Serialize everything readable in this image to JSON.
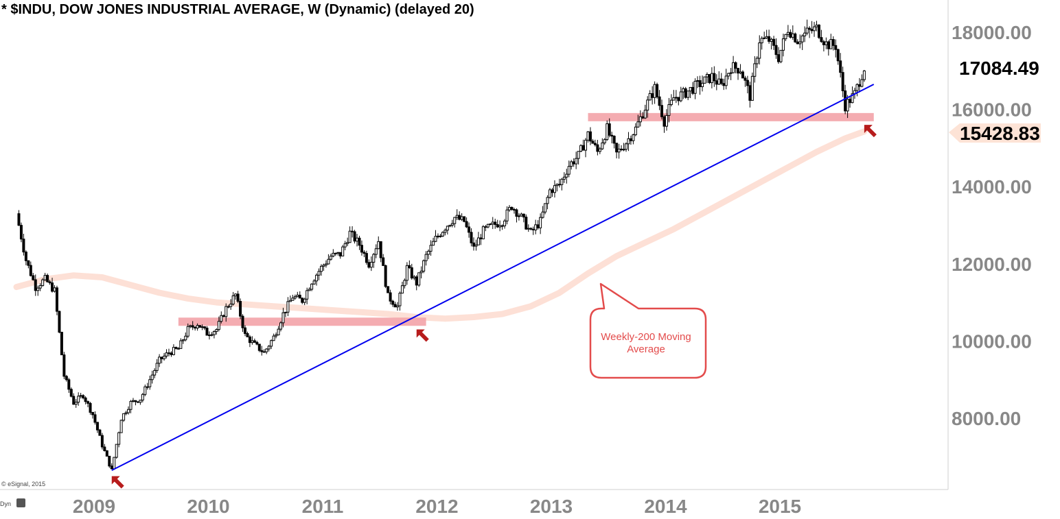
{
  "header": {
    "title": "* $INDU, DOW JONES INDUSTRIAL AVERAGE, W (Dynamic) (delayed 20)"
  },
  "footer": {
    "copyright": "© eSignal, 2015",
    "dyn_label": "Dyn"
  },
  "colors": {
    "candle": "#000000",
    "trendline": "#0000ee",
    "moving_average": "#fde0d6",
    "zones": "#f3a3a9",
    "arrows": "#b71c1c",
    "annotation": "#e34b4b"
  },
  "chart_data": {
    "type": "candlestick",
    "title": "* $INDU, DOW JONES INDUSTRIAL AVERAGE, W (Dynamic) (delayed 20)",
    "x_tick_labels": [
      "2009",
      "2010",
      "2011",
      "2012",
      "2013",
      "2014",
      "2015"
    ],
    "y_tick_labels": [
      "8000.00",
      "10000.00",
      "12000.00",
      "14000.00",
      "16000.00",
      "18000.00"
    ],
    "ylim": [
      6300,
      18800
    ],
    "y_scale": "linear",
    "grid": false,
    "last_price_label": "17084.49",
    "ma_value_label": "15428.83",
    "price_series": {
      "name": "$INDU weekly",
      "points": [
        [
          "2008-05",
          13300
        ],
        [
          "2008-06",
          12100
        ],
        [
          "2008-07",
          11400
        ],
        [
          "2008-08",
          11600
        ],
        [
          "2008-09",
          11300
        ],
        [
          "2008-10",
          9100
        ],
        [
          "2008-11",
          8400
        ],
        [
          "2008-12",
          8600
        ],
        [
          "2009-01",
          8100
        ],
        [
          "2009-02",
          7300
        ],
        [
          "2009-03",
          6650
        ],
        [
          "2009-04",
          8000
        ],
        [
          "2009-05",
          8400
        ],
        [
          "2009-06",
          8500
        ],
        [
          "2009-07",
          9000
        ],
        [
          "2009-08",
          9500
        ],
        [
          "2009-09",
          9700
        ],
        [
          "2009-10",
          9800
        ],
        [
          "2009-11",
          10300
        ],
        [
          "2009-12",
          10450
        ],
        [
          "2010-01",
          10200
        ],
        [
          "2010-02",
          10300
        ],
        [
          "2010-03",
          10850
        ],
        [
          "2010-04",
          11200
        ],
        [
          "2010-05",
          10150
        ],
        [
          "2010-06",
          9900
        ],
        [
          "2010-07",
          9700
        ],
        [
          "2010-08",
          10100
        ],
        [
          "2010-09",
          10700
        ],
        [
          "2010-10",
          11150
        ],
        [
          "2010-11",
          11050
        ],
        [
          "2010-12",
          11550
        ],
        [
          "2011-01",
          11900
        ],
        [
          "2011-02",
          12200
        ],
        [
          "2011-03",
          12250
        ],
        [
          "2011-04",
          12800
        ],
        [
          "2011-05",
          12500
        ],
        [
          "2011-06",
          12000
        ],
        [
          "2011-07",
          12600
        ],
        [
          "2011-08",
          11150
        ],
        [
          "2011-09",
          10900
        ],
        [
          "2011-10",
          11900
        ],
        [
          "2011-11",
          11500
        ],
        [
          "2011-12",
          12200
        ],
        [
          "2012-01",
          12650
        ],
        [
          "2012-02",
          12950
        ],
        [
          "2012-03",
          13200
        ],
        [
          "2012-04",
          13100
        ],
        [
          "2012-05",
          12400
        ],
        [
          "2012-06",
          12850
        ],
        [
          "2012-07",
          13000
        ],
        [
          "2012-08",
          13100
        ],
        [
          "2012-09",
          13500
        ],
        [
          "2012-10",
          13200
        ],
        [
          "2012-11",
          12800
        ],
        [
          "2012-12",
          13100
        ],
        [
          "2013-01",
          13900
        ],
        [
          "2013-02",
          14050
        ],
        [
          "2013-03",
          14550
        ],
        [
          "2013-04",
          14800
        ],
        [
          "2013-05",
          15350
        ],
        [
          "2013-06",
          14900
        ],
        [
          "2013-07",
          15500
        ],
        [
          "2013-08",
          14850
        ],
        [
          "2013-09",
          15150
        ],
        [
          "2013-10",
          15500
        ],
        [
          "2013-11",
          16050
        ],
        [
          "2013-12",
          16550
        ],
        [
          "2014-01",
          15700
        ],
        [
          "2014-02",
          16300
        ],
        [
          "2014-03",
          16400
        ],
        [
          "2014-04",
          16550
        ],
        [
          "2014-05",
          16700
        ],
        [
          "2014-06",
          16850
        ],
        [
          "2014-07",
          16600
        ],
        [
          "2014-08",
          17100
        ],
        [
          "2014-09",
          17050
        ],
        [
          "2014-10",
          16350
        ],
        [
          "2014-11",
          17800
        ],
        [
          "2014-12",
          17800
        ],
        [
          "2015-01",
          17350
        ],
        [
          "2015-02",
          18100
        ],
        [
          "2015-03",
          17800
        ],
        [
          "2015-04",
          18000
        ],
        [
          "2015-05",
          18100
        ],
        [
          "2015-06",
          17700
        ],
        [
          "2015-07",
          17650
        ],
        [
          "2015-08",
          16100
        ],
        [
          "2015-09",
          16400
        ],
        [
          "2015-10",
          17084.49
        ]
      ]
    },
    "moving_average_series": {
      "name": "Weekly-200 Moving Average",
      "points": [
        [
          "2008-05",
          11400
        ],
        [
          "2008-08",
          11600
        ],
        [
          "2008-11",
          11700
        ],
        [
          "2009-02",
          11650
        ],
        [
          "2009-05",
          11450
        ],
        [
          "2009-08",
          11250
        ],
        [
          "2009-11",
          11100
        ],
        [
          "2010-02",
          11000
        ],
        [
          "2010-05",
          10950
        ],
        [
          "2010-08",
          10900
        ],
        [
          "2010-11",
          10850
        ],
        [
          "2011-02",
          10800
        ],
        [
          "2011-05",
          10750
        ],
        [
          "2011-08",
          10700
        ],
        [
          "2011-11",
          10620
        ],
        [
          "2012-02",
          10580
        ],
        [
          "2012-05",
          10620
        ],
        [
          "2012-08",
          10700
        ],
        [
          "2012-11",
          10900
        ],
        [
          "2013-02",
          11250
        ],
        [
          "2013-05",
          11750
        ],
        [
          "2013-08",
          12200
        ],
        [
          "2013-11",
          12550
        ],
        [
          "2014-02",
          12900
        ],
        [
          "2014-05",
          13300
        ],
        [
          "2014-08",
          13700
        ],
        [
          "2014-11",
          14100
        ],
        [
          "2015-02",
          14500
        ],
        [
          "2015-05",
          14900
        ],
        [
          "2015-08",
          15250
        ],
        [
          "2015-10",
          15428.83
        ]
      ]
    },
    "trendline": {
      "from": [
        "2009-03",
        6650
      ],
      "to": [
        "2015-11",
        16650
      ]
    },
    "support_zones": [
      {
        "from": "2009-10",
        "to": "2011-12",
        "value": 10500
      },
      {
        "from": "2013-05",
        "to": "2015-11",
        "value": 15800
      }
    ],
    "arrows": [
      {
        "at": [
          "2009-03",
          6500
        ],
        "direction": "up-left"
      },
      {
        "at": [
          "2011-11",
          10300
        ],
        "direction": "up-left"
      },
      {
        "at": [
          "2015-10",
          15600
        ],
        "direction": "up-left"
      }
    ],
    "annotation": {
      "text_line1": "Weekly-200 Moving",
      "text_line2": "Average",
      "points_to": [
        "2013-03",
        11850
      ]
    }
  }
}
